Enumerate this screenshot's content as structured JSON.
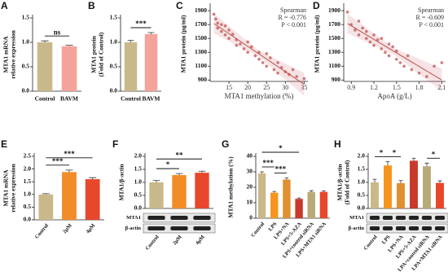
{
  "chart_data": [
    {
      "type": "bar",
      "panel": "A",
      "ylabel": [
        "MTA1 mRNA",
        "relative expression"
      ],
      "categories": [
        "Control",
        "BAVM"
      ],
      "values": [
        1.0,
        0.92
      ],
      "errors": [
        0.03,
        0.02
      ],
      "colors": [
        "#c9b98a",
        "#f4a39b"
      ],
      "ylim": [
        0,
        1.5
      ],
      "yticks": [
        {
          "value": 0,
          "label": "0.0"
        },
        0.5,
        {
          "value": 1,
          "label": "1.0"
        },
        1.5
      ],
      "comparisons": [
        {
          "label": "ns",
          "pair": [
            0,
            1
          ]
        }
      ]
    },
    {
      "type": "bar",
      "panel": "B",
      "ylabel": [
        "MTA1 protein",
        "(Fold of Control)"
      ],
      "categories": [
        "Control",
        "BAVM"
      ],
      "values": [
        1.0,
        1.17
      ],
      "errors": [
        0.04,
        0.03
      ],
      "colors": [
        "#c9b98a",
        "#f4a39b"
      ],
      "ylim": [
        0,
        1.5
      ],
      "yticks": [
        {
          "value": 0,
          "label": "0.0"
        },
        0.5,
        {
          "value": 1,
          "label": "1.0"
        },
        1.5
      ],
      "comparisons": [
        {
          "label": "***",
          "pair": [
            0,
            1
          ]
        }
      ]
    },
    {
      "type": "scatter",
      "panel": "C",
      "xlabel": "MTA1 methylation (%)",
      "ylabel": [
        "MTA1 protein (pg/ml)"
      ],
      "annotation": [
        "Spearman",
        "R = -0.776",
        "P < 0.001"
      ],
      "color": "#c0504d",
      "x": [
        11,
        11.5,
        12,
        12,
        13,
        13,
        14,
        14,
        15,
        15,
        16,
        17,
        17,
        18,
        19,
        20,
        20,
        21,
        22,
        23,
        23,
        24,
        25,
        25,
        26,
        27,
        28,
        28,
        29,
        30,
        31,
        32,
        33,
        35
      ],
      "values": [
        1850,
        1780,
        1720,
        1650,
        1700,
        1600,
        1680,
        1550,
        1620,
        1500,
        1560,
        1480,
        1400,
        1420,
        1350,
        1450,
        1300,
        1380,
        1250,
        1300,
        1200,
        1150,
        1280,
        1100,
        1220,
        1050,
        1150,
        1000,
        1080,
        1020,
        980,
        1050,
        950,
        920
      ],
      "xlim": [
        10,
        36
      ],
      "xticks": [
        15,
        20,
        25,
        30,
        35
      ],
      "ylim": [
        880,
        1960
      ],
      "yticks": [
        900,
        1100,
        1300,
        1500,
        1700,
        1900
      ]
    },
    {
      "type": "scatter",
      "panel": "D",
      "xlabel": "ApoA (g/L)",
      "ylabel": [
        "MTA1 protein (pg/ml)"
      ],
      "annotation": [
        "Spearman",
        "R = -0.609",
        "P < 0.001"
      ],
      "color": "#c0504d",
      "x": [
        0.85,
        0.9,
        0.95,
        1.0,
        1.0,
        1.05,
        1.1,
        1.1,
        1.15,
        1.2,
        1.2,
        1.25,
        1.3,
        1.3,
        1.35,
        1.4,
        1.4,
        1.45,
        1.5,
        1.5,
        1.55,
        1.6,
        1.65,
        1.7,
        1.8,
        1.9,
        2.0,
        2.1
      ],
      "values": [
        1880,
        1700,
        1620,
        1750,
        1550,
        1650,
        1500,
        1600,
        1450,
        1550,
        1400,
        1480,
        1350,
        1500,
        1300,
        1420,
        1250,
        1380,
        1200,
        1320,
        1150,
        1100,
        1250,
        1050,
        1000,
        950,
        1100,
        1150
      ],
      "xlim": [
        0.8,
        2.15
      ],
      "xticks": [
        0.9,
        1.2,
        1.5,
        1.8,
        2.1
      ],
      "ylim": [
        880,
        1960
      ],
      "yticks": [
        900,
        1100,
        1300,
        1500,
        1700,
        1900
      ]
    },
    {
      "type": "bar",
      "panel": "E",
      "ylabel": [
        "MTA1 mRNA",
        "relative expression"
      ],
      "categories": [
        "Control",
        "2μM",
        "4μM"
      ],
      "values": [
        1.0,
        1.88,
        1.6
      ],
      "errors": [
        0.03,
        0.08,
        0.06
      ],
      "colors": [
        "#c9b98a",
        "#f28c28",
        "#e8472b"
      ],
      "ylim": [
        0,
        2.5
      ],
      "yticks": [
        {
          "value": 0,
          "label": "0.0"
        },
        0.5,
        {
          "value": 1,
          "label": "1.0"
        },
        1.5,
        {
          "value": 2,
          "label": "2.0"
        },
        2.5
      ],
      "comparisons": [
        {
          "label": "***",
          "pair": [
            0,
            1
          ]
        },
        {
          "label": "***",
          "pair": [
            0,
            2
          ]
        }
      ]
    },
    {
      "type": "bar",
      "panel": "F",
      "ylabel": [
        "MTA1/β-actin"
      ],
      "categories": [
        "Control",
        "2μM",
        "4μM"
      ],
      "values": [
        1.0,
        1.28,
        1.37
      ],
      "errors": [
        0.07,
        0.06,
        0.06
      ],
      "colors": [
        "#c9b98a",
        "#f28c28",
        "#e8472b"
      ],
      "ylim": [
        0,
        2
      ],
      "yticks": [
        {
          "value": 0,
          "label": "0.0"
        },
        0.5,
        {
          "value": 1,
          "label": "1.0"
        },
        1.5,
        {
          "value": 2,
          "label": "2.0"
        }
      ],
      "comparisons": [
        {
          "label": "*",
          "pair": [
            0,
            1
          ]
        },
        {
          "label": "**",
          "pair": [
            0,
            2
          ]
        }
      ],
      "blot_labels": [
        "MTA1",
        "β-actin"
      ]
    },
    {
      "type": "bar",
      "panel": "G",
      "ylabel": [
        "MTA1 methylation (%)"
      ],
      "categories": [
        "Control",
        "LPS",
        "LPS+NA",
        "LPS+5-AZA",
        "LPS+control siRNA",
        "LPS+MTA1 siRNA"
      ],
      "values": [
        29,
        16.5,
        25,
        12.5,
        17,
        17
      ],
      "errors": [
        1,
        0.8,
        1,
        0.6,
        0.8,
        0.7
      ],
      "colors": [
        "#c9b98a",
        "#f7941d",
        "#e0902e",
        "#c9392a",
        "#b9aa7a",
        "#e8472b"
      ],
      "ylim": [
        0,
        40
      ],
      "yticks": [
        0,
        10,
        20,
        30,
        40
      ],
      "comparisons": [
        {
          "label": "***",
          "pair": [
            0,
            1
          ]
        },
        {
          "label": "*",
          "pair": [
            0,
            3
          ]
        },
        {
          "label": "***",
          "pair": [
            1,
            2
          ]
        }
      ]
    },
    {
      "type": "bar",
      "panel": "H",
      "ylabel": [
        "MTA1/β-actin",
        "(Fold of Control)"
      ],
      "categories": [
        "Control",
        "LPS",
        "LPS+NA",
        "LPS+5-AZA",
        "LPA+control siRNA",
        "LPA+MTA1 siRNA"
      ],
      "values": [
        1.0,
        1.65,
        0.97,
        1.83,
        1.62,
        0.98
      ],
      "errors": [
        0.12,
        0.15,
        0.1,
        0.1,
        0.12,
        0.08
      ],
      "colors": [
        "#c9b98a",
        "#f7941d",
        "#e0902e",
        "#c9392a",
        "#b9aa7a",
        "#e8472b"
      ],
      "ylim": [
        0,
        2
      ],
      "yticks": [
        {
          "value": 0,
          "label": "0.0"
        },
        0.5,
        {
          "value": 1,
          "label": "1.0"
        },
        1.5,
        {
          "value": 2,
          "label": "2.0"
        }
      ],
      "comparisons": [
        {
          "label": "*",
          "pair": [
            0,
            1
          ]
        },
        {
          "label": "*",
          "pair": [
            1,
            2
          ]
        },
        {
          "label": "*",
          "pair": [
            4,
            5
          ]
        }
      ],
      "blot_labels": [
        "MTA1",
        "β-actin"
      ]
    }
  ]
}
